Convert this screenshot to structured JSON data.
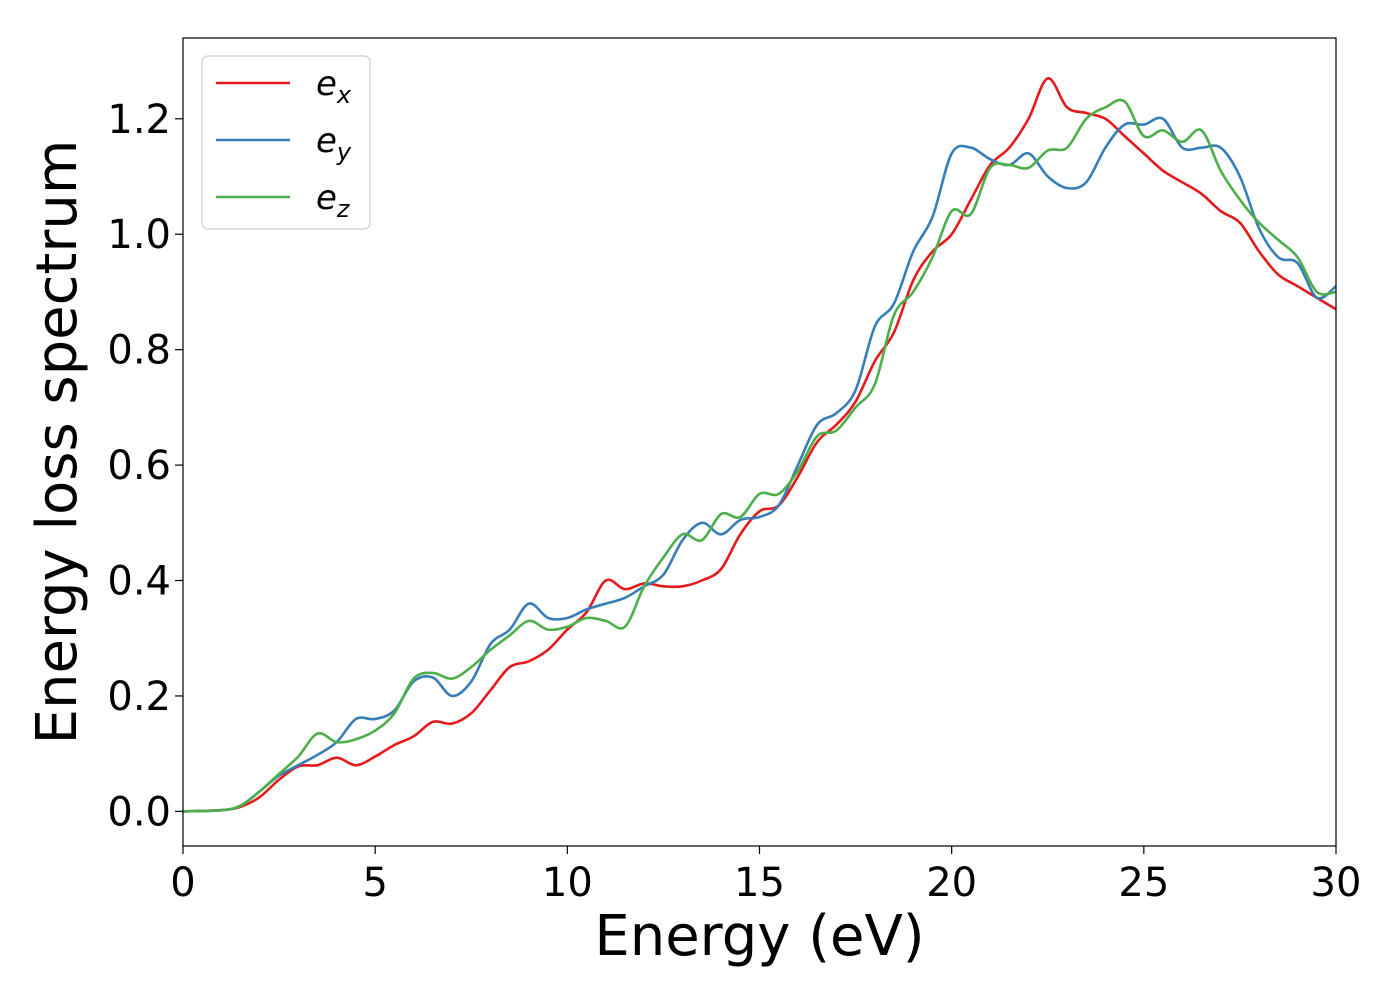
{
  "chart_data": {
    "type": "line",
    "title": "",
    "xlabel": "Energy (eV)",
    "ylabel": "Energy loss spectrum",
    "xlim": [
      0,
      30
    ],
    "ylim": [
      -0.06,
      1.34
    ],
    "xticks": [
      0,
      5,
      10,
      15,
      20,
      25,
      30
    ],
    "xtick_labels": [
      "0",
      "5",
      "10",
      "15",
      "20",
      "25",
      "30"
    ],
    "yticks": [
      0.0,
      0.2,
      0.4,
      0.6,
      0.8,
      1.0,
      1.2
    ],
    "ytick_labels": [
      "0.0",
      "0.2",
      "0.4",
      "0.6",
      "0.8",
      "1.0",
      "1.2"
    ],
    "grid": false,
    "legend_position": "top-left",
    "series": [
      {
        "name": "e_x",
        "legend_base": "e",
        "legend_sub": "x",
        "color": "#e41a1c",
        "points": [
          [
            0,
            0.0
          ],
          [
            1,
            0.002
          ],
          [
            1.5,
            0.008
          ],
          [
            2,
            0.025
          ],
          [
            2.5,
            0.055
          ],
          [
            3,
            0.078
          ],
          [
            3.5,
            0.08
          ],
          [
            4,
            0.093
          ],
          [
            4.5,
            0.08
          ],
          [
            5,
            0.095
          ],
          [
            5.5,
            0.115
          ],
          [
            6,
            0.13
          ],
          [
            6.5,
            0.155
          ],
          [
            7,
            0.152
          ],
          [
            7.5,
            0.17
          ],
          [
            8,
            0.21
          ],
          [
            8.5,
            0.25
          ],
          [
            9,
            0.26
          ],
          [
            9.5,
            0.28
          ],
          [
            10,
            0.315
          ],
          [
            10.5,
            0.345
          ],
          [
            11,
            0.4
          ],
          [
            11.5,
            0.385
          ],
          [
            12,
            0.395
          ],
          [
            12.5,
            0.39
          ],
          [
            13,
            0.39
          ],
          [
            13.5,
            0.4
          ],
          [
            14,
            0.42
          ],
          [
            14.5,
            0.48
          ],
          [
            15,
            0.52
          ],
          [
            15.5,
            0.53
          ],
          [
            16,
            0.58
          ],
          [
            16.5,
            0.64
          ],
          [
            17,
            0.67
          ],
          [
            17.5,
            0.71
          ],
          [
            18,
            0.78
          ],
          [
            18.5,
            0.83
          ],
          [
            19,
            0.92
          ],
          [
            19.5,
            0.97
          ],
          [
            20,
            1.0
          ],
          [
            20.5,
            1.06
          ],
          [
            21,
            1.12
          ],
          [
            21.5,
            1.15
          ],
          [
            22,
            1.2
          ],
          [
            22.5,
            1.27
          ],
          [
            23,
            1.22
          ],
          [
            23.5,
            1.21
          ],
          [
            24,
            1.2
          ],
          [
            24.5,
            1.17
          ],
          [
            25,
            1.14
          ],
          [
            25.5,
            1.11
          ],
          [
            26,
            1.09
          ],
          [
            26.5,
            1.07
          ],
          [
            27,
            1.04
          ],
          [
            27.5,
            1.02
          ],
          [
            28,
            0.97
          ],
          [
            28.5,
            0.93
          ],
          [
            29,
            0.91
          ],
          [
            29.5,
            0.89
          ],
          [
            30,
            0.87
          ]
        ]
      },
      {
        "name": "e_y",
        "legend_base": "e",
        "legend_sub": "y",
        "color": "#377eb8",
        "points": [
          [
            0,
            0.0
          ],
          [
            1,
            0.002
          ],
          [
            1.5,
            0.01
          ],
          [
            2,
            0.035
          ],
          [
            2.5,
            0.062
          ],
          [
            3,
            0.08
          ],
          [
            3.5,
            0.098
          ],
          [
            4,
            0.12
          ],
          [
            4.5,
            0.16
          ],
          [
            5,
            0.16
          ],
          [
            5.5,
            0.175
          ],
          [
            6,
            0.225
          ],
          [
            6.5,
            0.232
          ],
          [
            7,
            0.2
          ],
          [
            7.5,
            0.225
          ],
          [
            8,
            0.29
          ],
          [
            8.5,
            0.315
          ],
          [
            9,
            0.36
          ],
          [
            9.5,
            0.335
          ],
          [
            10,
            0.335
          ],
          [
            10.5,
            0.35
          ],
          [
            11,
            0.36
          ],
          [
            11.5,
            0.37
          ],
          [
            12,
            0.39
          ],
          [
            12.5,
            0.41
          ],
          [
            13,
            0.47
          ],
          [
            13.5,
            0.5
          ],
          [
            14,
            0.48
          ],
          [
            14.5,
            0.505
          ],
          [
            15,
            0.51
          ],
          [
            15.5,
            0.53
          ],
          [
            16,
            0.6
          ],
          [
            16.5,
            0.67
          ],
          [
            17,
            0.69
          ],
          [
            17.5,
            0.73
          ],
          [
            18,
            0.84
          ],
          [
            18.5,
            0.88
          ],
          [
            19,
            0.97
          ],
          [
            19.5,
            1.03
          ],
          [
            20,
            1.14
          ],
          [
            20.5,
            1.15
          ],
          [
            21,
            1.13
          ],
          [
            21.5,
            1.12
          ],
          [
            22,
            1.14
          ],
          [
            22.5,
            1.1
          ],
          [
            23,
            1.08
          ],
          [
            23.5,
            1.09
          ],
          [
            24,
            1.15
          ],
          [
            24.5,
            1.19
          ],
          [
            25,
            1.19
          ],
          [
            25.5,
            1.2
          ],
          [
            26,
            1.15
          ],
          [
            26.5,
            1.15
          ],
          [
            27,
            1.15
          ],
          [
            27.5,
            1.1
          ],
          [
            28,
            1.01
          ],
          [
            28.5,
            0.96
          ],
          [
            29,
            0.95
          ],
          [
            29.5,
            0.89
          ],
          [
            30,
            0.91
          ]
        ]
      },
      {
        "name": "e_z",
        "legend_base": "e",
        "legend_sub": "z",
        "color": "#4daf4a",
        "points": [
          [
            0,
            0.0
          ],
          [
            1,
            0.002
          ],
          [
            1.5,
            0.01
          ],
          [
            2,
            0.035
          ],
          [
            2.5,
            0.065
          ],
          [
            3,
            0.095
          ],
          [
            3.5,
            0.135
          ],
          [
            4,
            0.12
          ],
          [
            4.5,
            0.125
          ],
          [
            5,
            0.14
          ],
          [
            5.5,
            0.17
          ],
          [
            6,
            0.23
          ],
          [
            6.5,
            0.24
          ],
          [
            7,
            0.23
          ],
          [
            7.5,
            0.25
          ],
          [
            8,
            0.28
          ],
          [
            8.5,
            0.305
          ],
          [
            9,
            0.33
          ],
          [
            9.5,
            0.315
          ],
          [
            10,
            0.32
          ],
          [
            10.5,
            0.335
          ],
          [
            11,
            0.33
          ],
          [
            11.5,
            0.32
          ],
          [
            12,
            0.39
          ],
          [
            12.5,
            0.44
          ],
          [
            13,
            0.48
          ],
          [
            13.5,
            0.47
          ],
          [
            14,
            0.515
          ],
          [
            14.5,
            0.51
          ],
          [
            15,
            0.55
          ],
          [
            15.5,
            0.55
          ],
          [
            16,
            0.59
          ],
          [
            16.5,
            0.65
          ],
          [
            17,
            0.66
          ],
          [
            17.5,
            0.7
          ],
          [
            18,
            0.74
          ],
          [
            18.5,
            0.86
          ],
          [
            19,
            0.9
          ],
          [
            19.5,
            0.96
          ],
          [
            20,
            1.04
          ],
          [
            20.5,
            1.035
          ],
          [
            21,
            1.115
          ],
          [
            21.5,
            1.12
          ],
          [
            22,
            1.115
          ],
          [
            22.5,
            1.145
          ],
          [
            23,
            1.15
          ],
          [
            23.5,
            1.2
          ],
          [
            24,
            1.22
          ],
          [
            24.5,
            1.23
          ],
          [
            25,
            1.17
          ],
          [
            25.5,
            1.18
          ],
          [
            26,
            1.16
          ],
          [
            26.5,
            1.18
          ],
          [
            27,
            1.11
          ],
          [
            27.5,
            1.06
          ],
          [
            28,
            1.02
          ],
          [
            28.5,
            0.99
          ],
          [
            29,
            0.96
          ],
          [
            29.5,
            0.9
          ],
          [
            30,
            0.9
          ]
        ]
      }
    ]
  }
}
